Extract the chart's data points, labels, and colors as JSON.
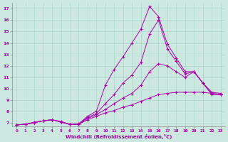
{
  "xlabel": "Windchill (Refroidissement éolien,°C)",
  "ylabel": "",
  "xlim": [
    -0.5,
    23.5
  ],
  "ylim": [
    6.7,
    17.5
  ],
  "xticks": [
    0,
    1,
    2,
    3,
    4,
    5,
    6,
    7,
    8,
    9,
    10,
    11,
    12,
    13,
    14,
    15,
    16,
    17,
    18,
    19,
    20,
    21,
    22,
    23
  ],
  "yticks": [
    7,
    8,
    9,
    10,
    11,
    12,
    13,
    14,
    15,
    16,
    17
  ],
  "background_color": "#cce8e0",
  "line_color": "#aa00aa",
  "grid_color": "#aad4cc",
  "line1_x": [
    0,
    1,
    2,
    3,
    4,
    5,
    6,
    7,
    8,
    9,
    10,
    11,
    12,
    13,
    14,
    15,
    16,
    17,
    18,
    19,
    20,
    21,
    22,
    23
  ],
  "line1_y": [
    6.85,
    6.9,
    7.1,
    7.2,
    7.3,
    7.15,
    6.9,
    6.95,
    7.6,
    8.05,
    10.3,
    11.7,
    12.8,
    14.0,
    15.2,
    17.2,
    16.3,
    13.9,
    12.7,
    11.5,
    11.5,
    10.5,
    9.7,
    9.6
  ],
  "line2_x": [
    0,
    1,
    2,
    3,
    4,
    5,
    6,
    7,
    8,
    9,
    10,
    11,
    12,
    13,
    14,
    15,
    16,
    17,
    18,
    19,
    20,
    21,
    22,
    23
  ],
  "line2_y": [
    6.85,
    6.9,
    7.05,
    7.2,
    7.3,
    7.1,
    6.9,
    6.9,
    7.5,
    7.85,
    8.7,
    9.5,
    10.5,
    11.2,
    12.3,
    14.8,
    16.0,
    13.5,
    12.4,
    11.3,
    11.5,
    10.5,
    9.6,
    9.5
  ],
  "line3_x": [
    0,
    1,
    2,
    3,
    4,
    5,
    6,
    7,
    8,
    9,
    10,
    11,
    12,
    13,
    14,
    15,
    16,
    17,
    18,
    19,
    20,
    21,
    22,
    23
  ],
  "line3_y": [
    6.85,
    6.9,
    7.05,
    7.2,
    7.3,
    7.1,
    6.9,
    6.9,
    7.4,
    7.75,
    8.2,
    8.7,
    9.2,
    9.6,
    10.3,
    11.5,
    12.2,
    12.0,
    11.5,
    11.0,
    11.5,
    10.5,
    9.5,
    9.5
  ],
  "line4_x": [
    0,
    1,
    2,
    3,
    4,
    5,
    6,
    7,
    8,
    9,
    10,
    11,
    12,
    13,
    14,
    15,
    16,
    17,
    18,
    19,
    20,
    21,
    22,
    23
  ],
  "line4_y": [
    6.85,
    6.9,
    7.05,
    7.2,
    7.3,
    7.1,
    6.9,
    6.9,
    7.3,
    7.6,
    7.9,
    8.1,
    8.4,
    8.6,
    8.9,
    9.2,
    9.5,
    9.6,
    9.7,
    9.7,
    9.7,
    9.7,
    9.6,
    9.5
  ]
}
